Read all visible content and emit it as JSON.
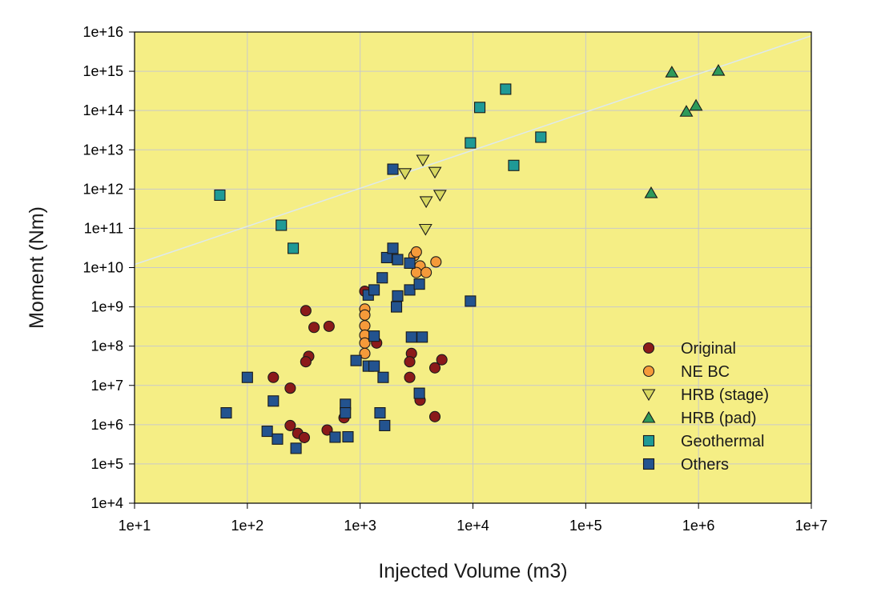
{
  "chart_data": {
    "type": "scatter",
    "xlabel": "Injected Volume (m3)",
    "ylabel": "Moment (Nm)",
    "xscale": "log",
    "yscale": "log",
    "xlim": [
      10,
      10000000
    ],
    "ylim": [
      10000,
      10000000000000000
    ],
    "x_ticks": [
      10,
      100,
      1000,
      10000,
      100000,
      1000000,
      10000000
    ],
    "x_tick_labels": [
      "1e+1",
      "1e+2",
      "1e+3",
      "1e+4",
      "1e+5",
      "1e+6",
      "1e+7"
    ],
    "y_ticks": [
      10000,
      100000,
      1000000,
      10000000,
      100000000,
      1000000000,
      10000000000,
      100000000000,
      1000000000000,
      10000000000000,
      100000000000000,
      1000000000000000,
      10000000000000000
    ],
    "y_tick_labels": [
      "1e+4",
      "1e+5",
      "1e+6",
      "1e+7",
      "1e+8",
      "1e+9",
      "1e+10",
      "1e+11",
      "1e+12",
      "1e+13",
      "1e+14",
      "1e+15",
      "1e+16"
    ],
    "grid": true,
    "plot_background": "#f5ee85",
    "legend_position": "bottom-right",
    "reference_line": {
      "color": "#dde9ee",
      "points": [
        [
          10,
          12000000000
        ],
        [
          10000000,
          8000000000000000
        ]
      ]
    },
    "series": [
      {
        "name": "Original",
        "marker": "circle",
        "color": "#8b1a1a",
        "points": [
          [
            330,
            800000000
          ],
          [
            390,
            300000000
          ],
          [
            530,
            320000000
          ],
          [
            350,
            55000000
          ],
          [
            330,
            40000000
          ],
          [
            170,
            16000000
          ],
          [
            240,
            8500000
          ],
          [
            240,
            950000
          ],
          [
            280,
            600000
          ],
          [
            320,
            470000
          ],
          [
            510,
            730000
          ],
          [
            720,
            1500000
          ],
          [
            1100,
            2500000000
          ],
          [
            1400,
            120000000
          ],
          [
            2850,
            65000000
          ],
          [
            2750,
            40000000
          ],
          [
            2750,
            16000000
          ],
          [
            4600,
            28000000
          ],
          [
            5300,
            45000000
          ],
          [
            3400,
            4200000
          ],
          [
            4600,
            1600000
          ]
        ]
      },
      {
        "name": "NE BC",
        "marker": "circle",
        "color": "#f59a3a",
        "points": [
          [
            1100,
            880000000
          ],
          [
            1100,
            620000000
          ],
          [
            1100,
            330000000
          ],
          [
            1100,
            190000000
          ],
          [
            1100,
            120000000
          ],
          [
            1100,
            65000000
          ],
          [
            2750,
            13000000000
          ],
          [
            3000,
            20000000000
          ],
          [
            3150,
            25000000000
          ],
          [
            3400,
            11000000000
          ],
          [
            3150,
            7500000000
          ],
          [
            3850,
            7500000000
          ],
          [
            4700,
            14000000000
          ]
        ]
      },
      {
        "name": "HRB (stage)",
        "marker": "triangle-down",
        "color": "#d8d860",
        "points": [
          [
            2500,
            2500000000000
          ],
          [
            3600,
            5500000000000
          ],
          [
            4600,
            2700000000000
          ],
          [
            5100,
            700000000000
          ],
          [
            3850,
            480000000000
          ],
          [
            3800,
            95000000000
          ]
        ]
      },
      {
        "name": "HRB (pad)",
        "marker": "triangle-up",
        "color": "#2e9a5a",
        "points": [
          [
            380000,
            800000000000
          ],
          [
            580000,
            950000000000000
          ],
          [
            780000,
            95000000000000
          ],
          [
            950000,
            135000000000000
          ],
          [
            1500000,
            1050000000000000
          ]
        ]
      },
      {
        "name": "Geothermal",
        "marker": "square",
        "color": "#1f9a96",
        "points": [
          [
            57,
            700000000000
          ],
          [
            200,
            120000000000
          ],
          [
            255,
            31000000000
          ],
          [
            9500,
            15000000000000
          ],
          [
            11500,
            120000000000000
          ],
          [
            19500,
            350000000000000
          ],
          [
            23000,
            4000000000000
          ],
          [
            40000,
            21000000000000
          ]
        ]
      },
      {
        "name": "Others",
        "marker": "square",
        "color": "#23538f",
        "points": [
          [
            65,
            2000000
          ],
          [
            100,
            16000000
          ],
          [
            150,
            680000
          ],
          [
            170,
            4000000
          ],
          [
            185,
            430000
          ],
          [
            270,
            250000
          ],
          [
            600,
            480000
          ],
          [
            780,
            490000
          ],
          [
            740,
            3300000
          ],
          [
            740,
            2000000
          ],
          [
            920,
            43000000
          ],
          [
            1180,
            31000000
          ],
          [
            1330,
            31000000
          ],
          [
            1180,
            2000000000
          ],
          [
            1330,
            2700000000
          ],
          [
            1330,
            180000000
          ],
          [
            1570,
            5500000000
          ],
          [
            1720,
            18000000000
          ],
          [
            1950,
            31000000000
          ],
          [
            1950,
            3200000000000
          ],
          [
            2150,
            16000000000
          ],
          [
            2150,
            1900000000
          ],
          [
            2100,
            1000000000
          ],
          [
            1600,
            16000000
          ],
          [
            1500,
            2000000
          ],
          [
            1650,
            950000
          ],
          [
            2750,
            13000000000
          ],
          [
            2750,
            2700000000
          ],
          [
            2850,
            170000000
          ],
          [
            3550,
            170000000
          ],
          [
            3350,
            3800000000
          ],
          [
            3350,
            6300000
          ],
          [
            9500,
            1400000000
          ]
        ]
      }
    ]
  }
}
